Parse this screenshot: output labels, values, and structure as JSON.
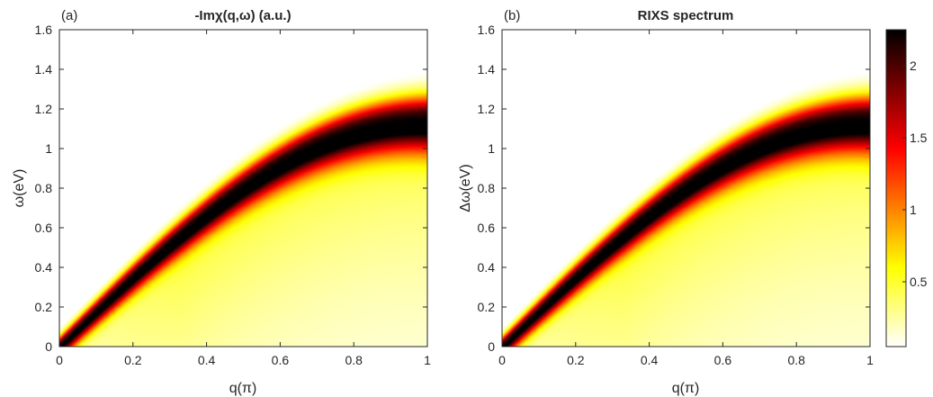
{
  "chart_data": [
    {
      "type": "heatmap",
      "panel_tag": "(a)",
      "title": "-Imχ(q,ω) (a.u.)",
      "xlabel": "q(π)",
      "ylabel": "ω(eV)",
      "xlim": [
        0,
        1
      ],
      "ylim": [
        0,
        1.6
      ],
      "xticks": [
        "0",
        "0.2",
        "0.4",
        "0.6",
        "0.8",
        "1"
      ],
      "yticks": [
        "0",
        "0.2",
        "0.4",
        "0.6",
        "0.8",
        "1",
        "1.2",
        "1.4",
        "1.6"
      ],
      "colormap": "hot (reversed)",
      "description_of_data": {
        "ridge_peak_energy_at_q1": 1.15,
        "peak_intensity": 2.2,
        "ridge_energy_at_q0.2": 0.32,
        "ridge_energy_at_q0.4": 0.62,
        "ridge_energy_at_q0.6": 0.88,
        "ridge_energy_at_q0.8": 1.06
      }
    },
    {
      "type": "heatmap",
      "panel_tag": "(b)",
      "title": "RIXS spectrum",
      "xlabel": "q(π)",
      "ylabel": "Δω(eV)",
      "xlim": [
        0,
        1
      ],
      "ylim": [
        0,
        1.6
      ],
      "xticks": [
        "0",
        "0.2",
        "0.4",
        "0.6",
        "0.8",
        "1"
      ],
      "yticks": [
        "0",
        "0.2",
        "0.4",
        "0.6",
        "0.8",
        "1",
        "1.2",
        "1.4",
        "1.6"
      ],
      "colormap": "hot (reversed)",
      "colorbar": {
        "range": [
          0.05,
          2.25
        ],
        "ticks": [
          "0.5",
          "1",
          "1.5",
          "2"
        ],
        "tick_values": [
          0.5,
          1,
          1.5,
          2
        ]
      },
      "description_of_data": {
        "ridge_peak_energy_at_q1": 1.15,
        "peak_intensity": 2.2,
        "ridge_energy_at_q0.2": 0.32,
        "ridge_energy_at_q0.4": 0.62,
        "ridge_energy_at_q0.6": 0.88,
        "ridge_energy_at_q0.8": 1.06
      }
    }
  ]
}
